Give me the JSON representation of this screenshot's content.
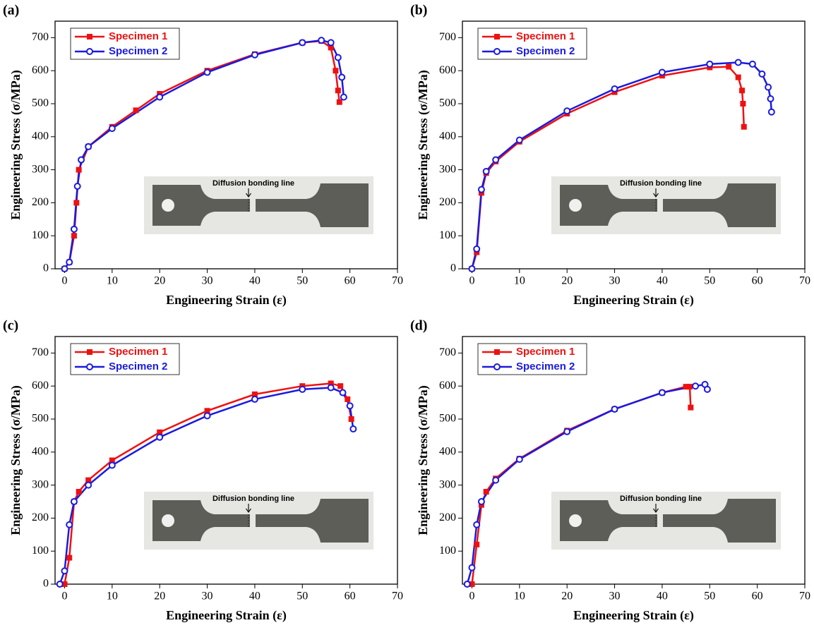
{
  "chart_data": [
    {
      "type": "line",
      "panel_label": "(a)",
      "x_label": "Engineering Strain (ε)",
      "y_label": "Engineering Stress (σ/MPa)",
      "inset_text": "Diffusion bonding line",
      "xlim": [
        -2,
        70
      ],
      "ylim": [
        0,
        750
      ],
      "xticks": [
        0,
        10,
        20,
        30,
        40,
        50,
        60,
        70
      ],
      "yticks": [
        0,
        100,
        200,
        300,
        400,
        500,
        600,
        700
      ],
      "legend": "upper left",
      "series": [
        {
          "name": "Specimen 1",
          "color": "#ee1111",
          "marker": "square",
          "x": [
            0,
            1,
            2,
            2.5,
            3,
            5,
            10,
            15,
            20,
            30,
            40,
            50,
            54,
            56,
            57,
            57.5,
            57.8
          ],
          "values": [
            0,
            20,
            100,
            200,
            300,
            370,
            430,
            480,
            530,
            600,
            650,
            685,
            690,
            670,
            600,
            540,
            505
          ]
        },
        {
          "name": "Specimen 2",
          "color": "#1a1adf",
          "marker": "circle",
          "x": [
            0,
            1,
            2,
            2.7,
            3.5,
            5,
            10,
            20,
            30,
            40,
            50,
            54,
            56,
            57.5,
            58.3,
            58.7
          ],
          "values": [
            0,
            20,
            120,
            250,
            330,
            370,
            425,
            520,
            595,
            648,
            685,
            692,
            685,
            640,
            580,
            520
          ]
        }
      ]
    },
    {
      "type": "line",
      "panel_label": "(b)",
      "x_label": "Engineering Strain (ε)",
      "y_label": "Engineering Stress (σ/MPa)",
      "inset_text": "Diffusion bonding line",
      "xlim": [
        -2,
        70
      ],
      "ylim": [
        0,
        750
      ],
      "xticks": [
        0,
        10,
        20,
        30,
        40,
        50,
        60,
        70
      ],
      "yticks": [
        0,
        100,
        200,
        300,
        400,
        500,
        600,
        700
      ],
      "legend": "upper left",
      "series": [
        {
          "name": "Specimen 1",
          "color": "#ee1111",
          "marker": "square",
          "x": [
            0,
            1,
            2,
            3,
            5,
            10,
            20,
            30,
            40,
            50,
            54,
            56,
            56.8,
            57,
            57.2
          ],
          "values": [
            0,
            50,
            230,
            290,
            325,
            385,
            470,
            535,
            585,
            610,
            612,
            580,
            540,
            500,
            430
          ]
        },
        {
          "name": "Specimen 2",
          "color": "#1a1adf",
          "marker": "circle",
          "x": [
            0,
            1,
            2,
            3,
            5,
            10,
            20,
            30,
            40,
            50,
            56,
            59,
            61,
            62.3,
            62.8,
            63
          ],
          "values": [
            0,
            60,
            240,
            295,
            330,
            390,
            478,
            545,
            595,
            620,
            625,
            620,
            590,
            550,
            515,
            475
          ]
        }
      ]
    },
    {
      "type": "line",
      "panel_label": "(c)",
      "x_label": "Engineering Strain (ε)",
      "y_label": "Engineering Stress (σ/MPa)",
      "inset_text": "Diffusion bonding line",
      "xlim": [
        -2,
        70
      ],
      "ylim": [
        0,
        750
      ],
      "xticks": [
        0,
        10,
        20,
        30,
        40,
        50,
        60,
        70
      ],
      "yticks": [
        0,
        100,
        200,
        300,
        400,
        500,
        600,
        700
      ],
      "legend": "upper left",
      "series": [
        {
          "name": "Specimen 1",
          "color": "#ee1111",
          "marker": "square",
          "x": [
            0,
            1,
            2,
            3,
            5,
            10,
            20,
            30,
            40,
            50,
            56,
            58,
            59.5,
            60.3
          ],
          "values": [
            0,
            80,
            250,
            280,
            315,
            375,
            460,
            525,
            575,
            600,
            608,
            600,
            560,
            500
          ]
        },
        {
          "name": "Specimen 2",
          "color": "#1a1adf",
          "marker": "circle",
          "x": [
            -1,
            0,
            1,
            2,
            5,
            10,
            20,
            30,
            40,
            50,
            56,
            58.5,
            60,
            60.7
          ],
          "values": [
            0,
            40,
            180,
            250,
            300,
            360,
            445,
            510,
            560,
            590,
            595,
            580,
            540,
            470
          ]
        }
      ]
    },
    {
      "type": "line",
      "panel_label": "(d)",
      "x_label": "Engineering Strain (ε)",
      "y_label": "Engineering Stress (σ/MPa)",
      "inset_text": "Diffusion bonding line",
      "xlim": [
        -2,
        70
      ],
      "ylim": [
        0,
        750
      ],
      "xticks": [
        0,
        10,
        20,
        30,
        40,
        50,
        60,
        70
      ],
      "yticks": [
        100,
        200,
        300,
        400,
        500,
        600,
        700
      ],
      "legend": "upper left",
      "series": [
        {
          "name": "Specimen 1",
          "color": "#ee1111",
          "marker": "square",
          "x": [
            0,
            1,
            2,
            3,
            5,
            10,
            20,
            30,
            40,
            45,
            45.8,
            46
          ],
          "values": [
            0,
            120,
            240,
            280,
            320,
            380,
            465,
            530,
            580,
            598,
            598,
            535
          ]
        },
        {
          "name": "Specimen 2",
          "color": "#1a1adf",
          "marker": "circle",
          "x": [
            -1,
            0,
            1,
            2,
            5,
            10,
            20,
            30,
            40,
            47,
            49,
            49.5
          ],
          "values": [
            0,
            50,
            180,
            250,
            315,
            378,
            462,
            530,
            580,
            600,
            605,
            590
          ]
        }
      ]
    }
  ]
}
